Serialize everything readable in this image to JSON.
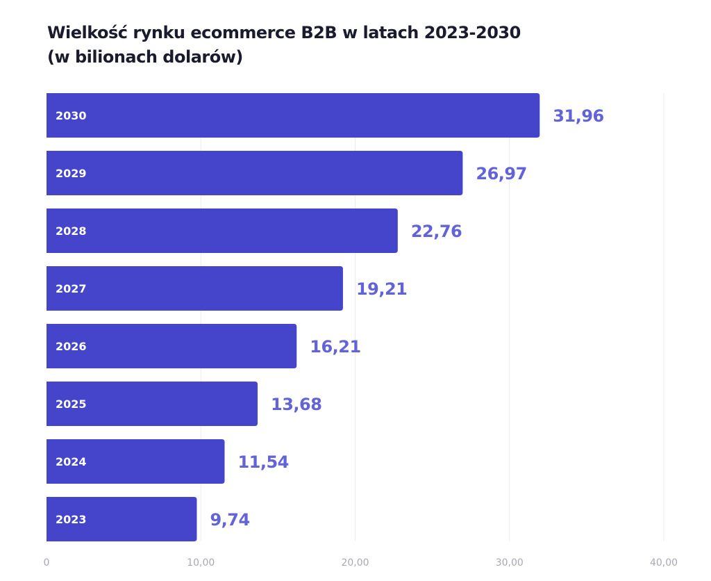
{
  "chart_data": {
    "type": "bar",
    "orientation": "horizontal",
    "title": [
      "Wielkość rynku ecommerce B2B w latach 2023-2030",
      "(w bilionach dolarów)"
    ],
    "categories": [
      "2030",
      "2029",
      "2028",
      "2027",
      "2026",
      "2025",
      "2024",
      "2023"
    ],
    "values": [
      31.96,
      26.97,
      22.76,
      19.21,
      16.21,
      13.68,
      11.54,
      9.74
    ],
    "value_labels": [
      "31,96",
      "26,97",
      "22,76",
      "19,21",
      "16,21",
      "13,68",
      "11,54",
      "9,74"
    ],
    "xlim": [
      0,
      40
    ],
    "x_ticks": [
      0,
      10,
      20,
      30,
      40
    ],
    "x_tick_labels": [
      "0",
      "10,00",
      "20,00",
      "30,00",
      "40,00"
    ],
    "grid": "vertical",
    "legend": "none",
    "colors": {
      "bar": "#4545cc",
      "value_label": "#6363d8",
      "category_label": "#ffffff",
      "grid": "#ececf0",
      "tick_label": "#a8a8b4"
    }
  }
}
